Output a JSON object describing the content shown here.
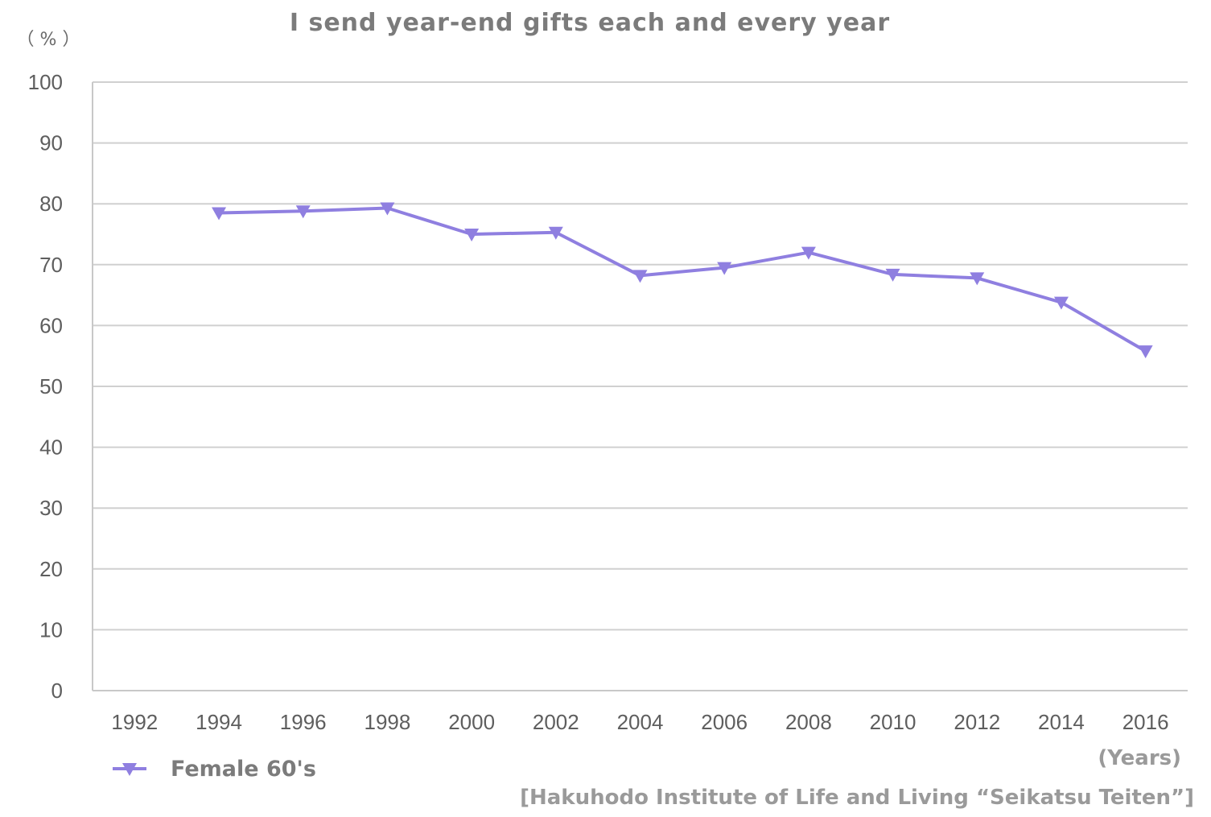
{
  "chart_data": {
    "type": "line",
    "title": "I send year-end gifts each and every year",
    "ylabel": "（ % ）",
    "xlabel": "(Years)",
    "categories": [
      "1992",
      "1994",
      "1996",
      "1998",
      "2000",
      "2002",
      "2004",
      "2006",
      "2008",
      "2010",
      "2012",
      "2014",
      "2016"
    ],
    "yticks": [
      "0",
      "10",
      "20",
      "30",
      "40",
      "50",
      "60",
      "70",
      "80",
      "90",
      "100"
    ],
    "ylim": [
      0,
      100
    ],
    "grid": true,
    "legend_position": "bottom-left",
    "series": [
      {
        "name": "Female 60's",
        "color": "#8f7fe0",
        "marker": "triangle-down",
        "values": [
          null,
          78.5,
          78.8,
          79.3,
          75.0,
          75.3,
          68.2,
          69.5,
          72.0,
          68.4,
          67.8,
          63.8,
          55.8
        ]
      }
    ],
    "source": "[Hakuhodo Institute of Life and Living “Seikatsu Teiten”]"
  }
}
